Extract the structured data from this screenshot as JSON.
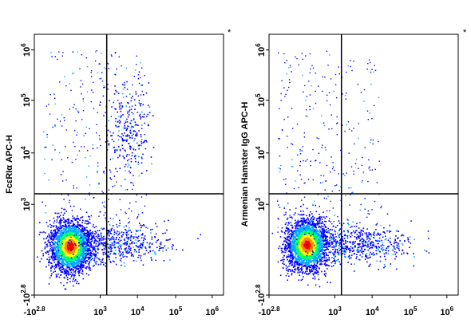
{
  "chart_data": [
    {
      "type": "scatter",
      "title": "",
      "ylabel": "FcεRIα APC-H",
      "xlabel": "",
      "x_scale": "biexponential-log",
      "y_scale": "biexponential-log",
      "xlim": [
        -630,
        1000000
      ],
      "ylim": [
        -630,
        1000000
      ],
      "x_ticks": [
        {
          "base": "-10",
          "exp": "2.8"
        },
        {
          "base": "10",
          "exp": "3"
        },
        {
          "base": "10",
          "exp": "4"
        },
        {
          "base": "10",
          "exp": "5"
        },
        {
          "base": "10",
          "exp": "6"
        }
      ],
      "y_ticks": [
        {
          "base": "-10",
          "exp": "2.8"
        },
        {
          "base": "10",
          "exp": "3"
        },
        {
          "base": "10",
          "exp": "4"
        },
        {
          "base": "10",
          "exp": "5"
        },
        {
          "base": "10",
          "exp": "6"
        }
      ],
      "gates": {
        "x": 1500,
        "y": 1600
      },
      "corner_mark": "*",
      "populations": [
        {
          "label": "main cluster (double negative)",
          "x_center": 250,
          "y_center": 250,
          "density": "high"
        },
        {
          "label": "FceRIa+ cluster",
          "x_center": 5000,
          "y_center": 25000,
          "density": "medium"
        },
        {
          "label": "x-positive shoulder",
          "x_center": 3000,
          "y_center": 300,
          "density": "low"
        }
      ],
      "density_colors": [
        "#0000ff",
        "#00aaff",
        "#00ff66",
        "#ffff00",
        "#ff8800",
        "#ff0000"
      ]
    },
    {
      "type": "scatter",
      "title": "",
      "ylabel": "Armenian Hamster IgG APC-H",
      "xlabel": "",
      "x_scale": "biexponential-log",
      "y_scale": "biexponential-log",
      "xlim": [
        -630,
        1000000
      ],
      "ylim": [
        -630,
        1000000
      ],
      "x_ticks": [
        {
          "base": "-10",
          "exp": "2.8"
        },
        {
          "base": "10",
          "exp": "3"
        },
        {
          "base": "10",
          "exp": "4"
        },
        {
          "base": "10",
          "exp": "5"
        },
        {
          "base": "10",
          "exp": "6"
        }
      ],
      "y_ticks": [
        {
          "base": "-10",
          "exp": "2.8"
        },
        {
          "base": "10",
          "exp": "3"
        },
        {
          "base": "10",
          "exp": "4"
        },
        {
          "base": "10",
          "exp": "5"
        },
        {
          "base": "10",
          "exp": "6"
        }
      ],
      "gates": {
        "x": 1500,
        "y": 1600
      },
      "corner_mark": "*",
      "populations": [
        {
          "label": "main cluster (double negative)",
          "x_center": 300,
          "y_center": 280,
          "density": "high"
        },
        {
          "label": "x-positive shoulder",
          "x_center": 5000,
          "y_center": 300,
          "density": "low"
        }
      ],
      "density_colors": [
        "#0000ff",
        "#00aaff",
        "#00ff66",
        "#ffff00",
        "#ff8800",
        "#ff0000"
      ]
    }
  ]
}
